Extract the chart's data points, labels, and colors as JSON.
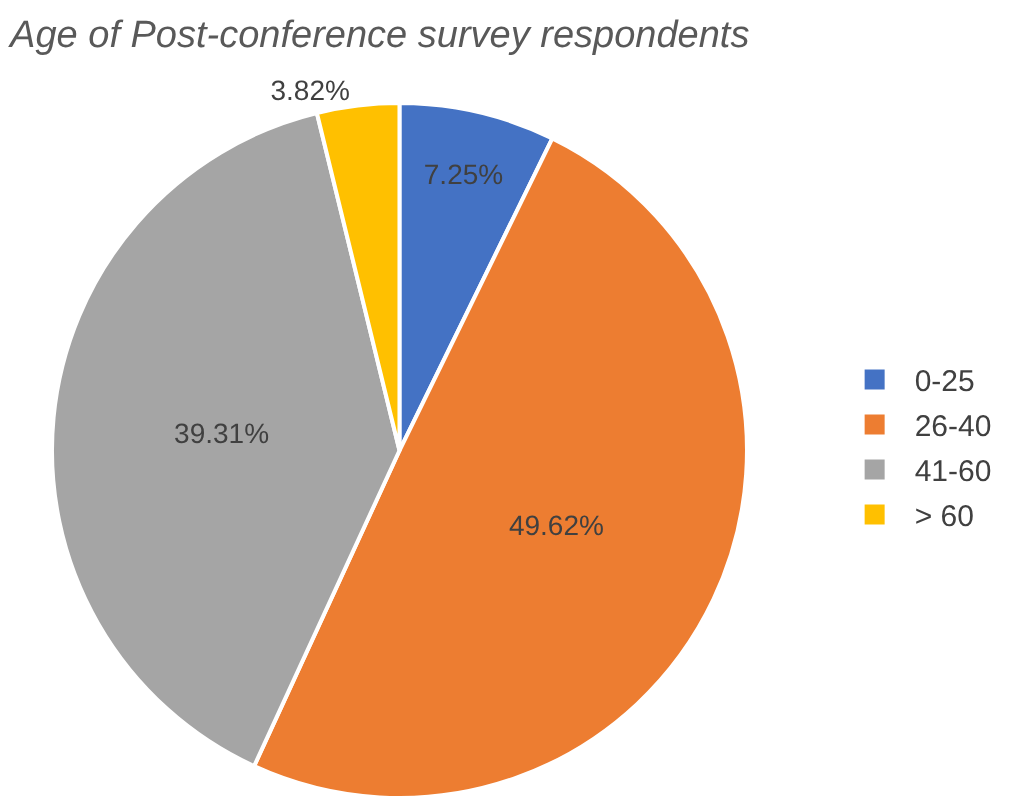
{
  "chart_data": {
    "type": "pie",
    "title": "Age of Post-conference survey respondents",
    "categories": [
      "0-25",
      "26-40",
      "41-60",
      "> 60"
    ],
    "values": [
      7.25,
      49.62,
      39.31,
      3.82
    ],
    "value_labels": [
      "7.25%",
      "49.62%",
      "39.31%",
      "3.82%"
    ],
    "colors": [
      "#4472c4",
      "#ed7d31",
      "#a5a5a5",
      "#ffc000"
    ],
    "legend": "right"
  }
}
